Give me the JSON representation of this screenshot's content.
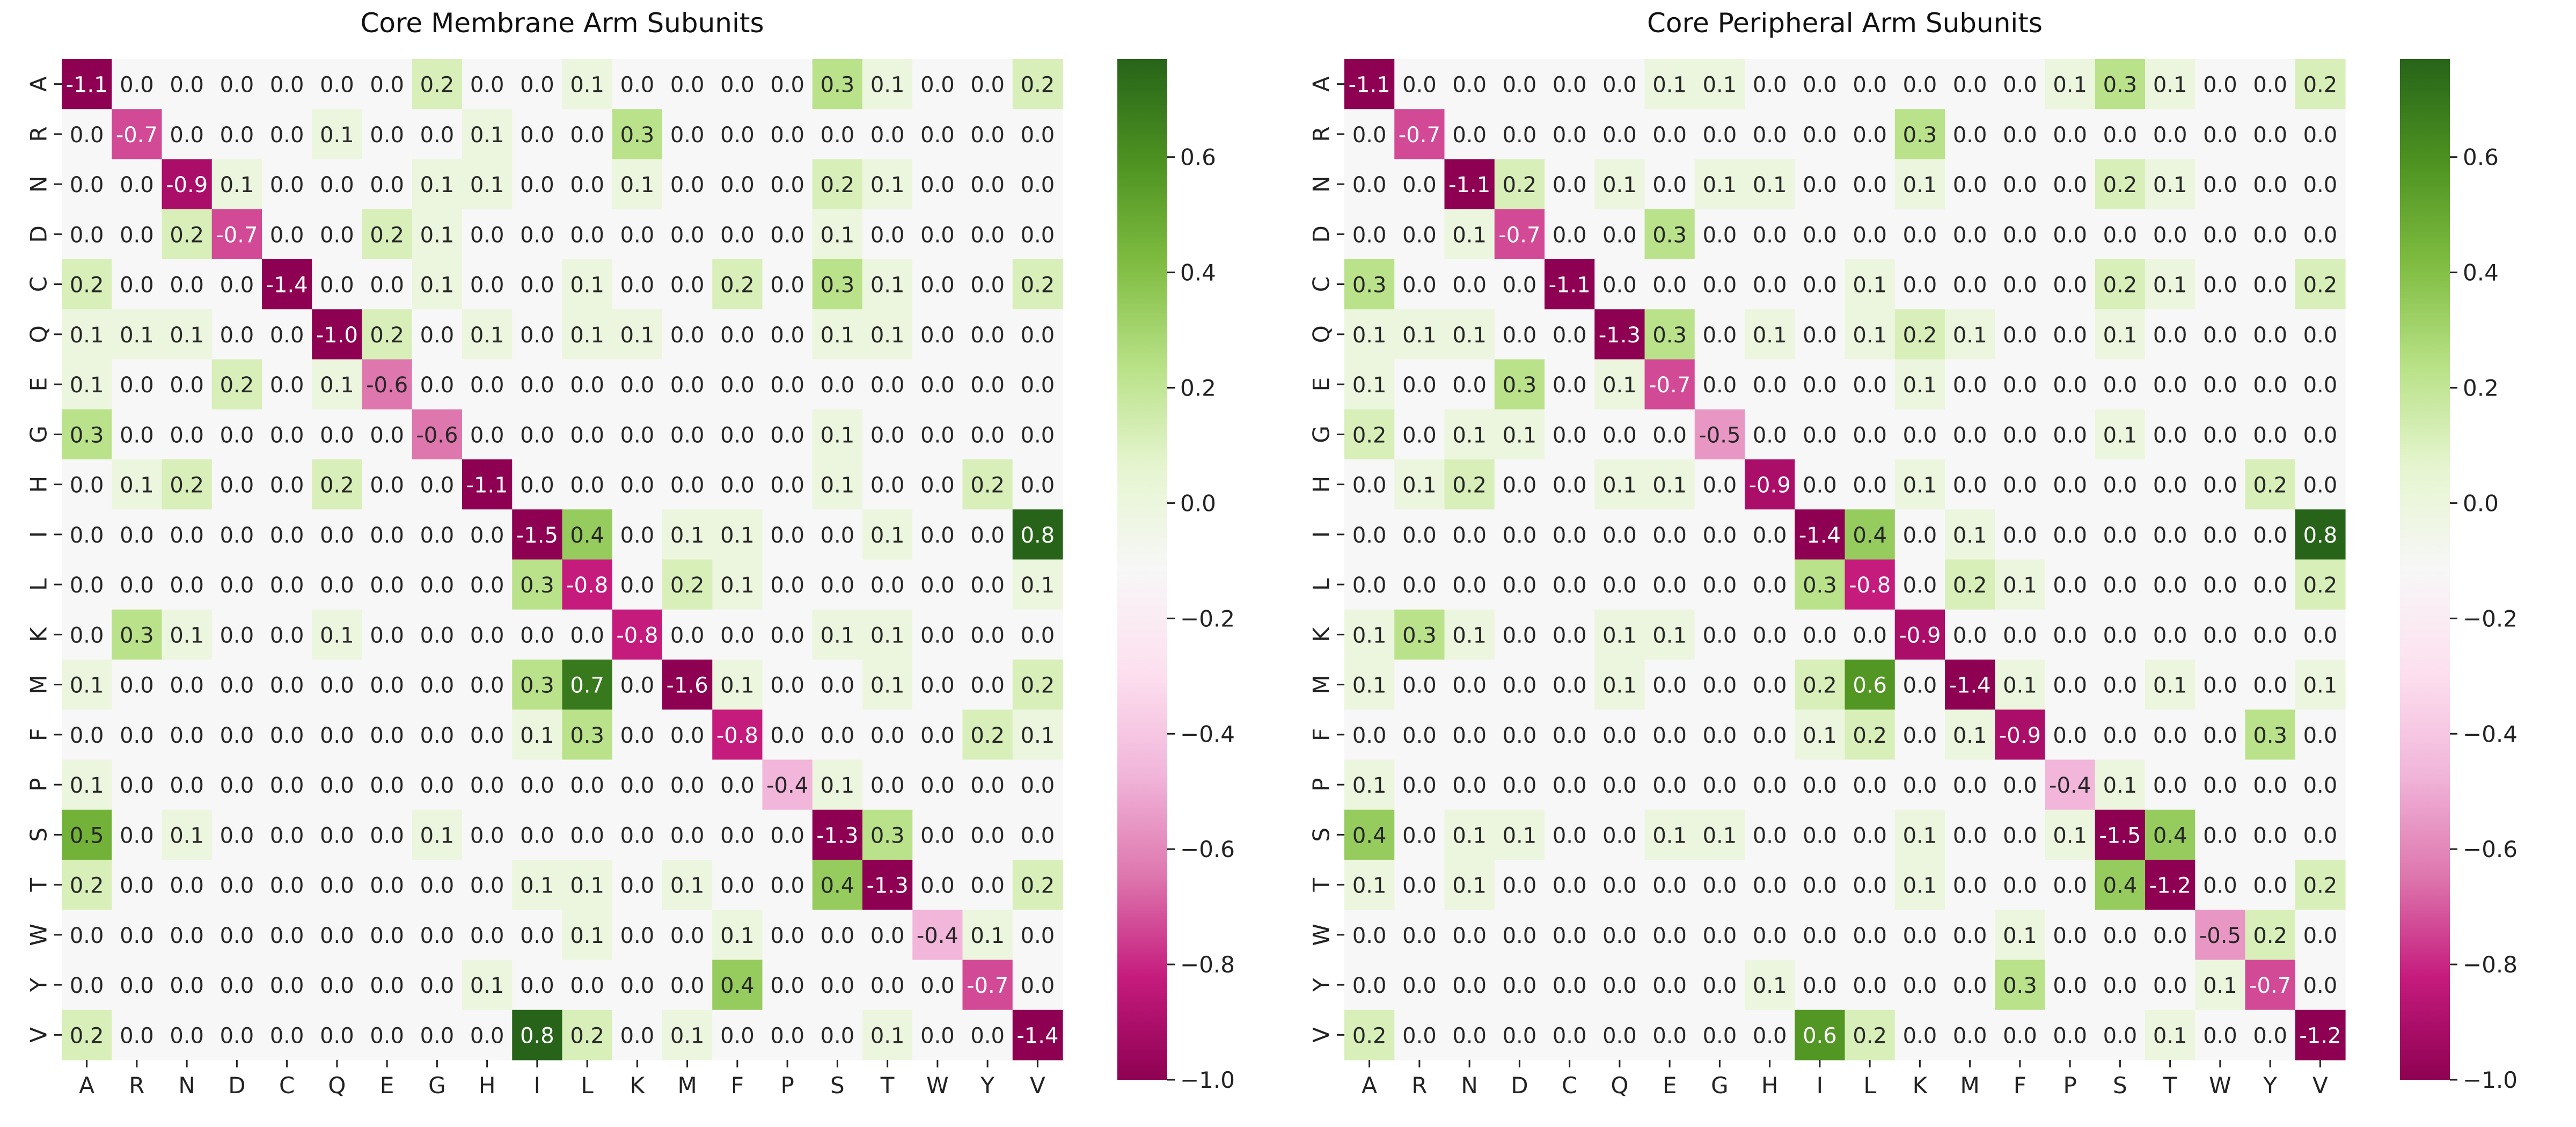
{
  "chart_data": [
    {
      "type": "heatmap",
      "title": "Core Membrane Arm Subunits",
      "x_categories": [
        "A",
        "R",
        "N",
        "D",
        "C",
        "Q",
        "E",
        "G",
        "H",
        "I",
        "L",
        "K",
        "M",
        "F",
        "P",
        "S",
        "T",
        "W",
        "Y",
        "V"
      ],
      "y_categories": [
        "A",
        "R",
        "N",
        "D",
        "C",
        "Q",
        "E",
        "G",
        "H",
        "I",
        "L",
        "K",
        "M",
        "F",
        "P",
        "S",
        "T",
        "W",
        "Y",
        "V"
      ],
      "values": [
        [
          -1.1,
          0.0,
          0.0,
          0.0,
          0.0,
          0.0,
          0.0,
          0.2,
          0.0,
          0.0,
          0.1,
          0.0,
          0.0,
          0.0,
          0.0,
          0.3,
          0.1,
          0.0,
          0.0,
          0.2
        ],
        [
          0.0,
          -0.7,
          0.0,
          0.0,
          0.0,
          0.1,
          0.0,
          0.0,
          0.1,
          0.0,
          0.0,
          0.3,
          0.0,
          0.0,
          0.0,
          0.0,
          0.0,
          0.0,
          0.0,
          0.0
        ],
        [
          0.0,
          0.0,
          -0.9,
          0.1,
          0.0,
          0.0,
          0.0,
          0.1,
          0.1,
          0.0,
          0.0,
          0.1,
          0.0,
          0.0,
          0.0,
          0.2,
          0.1,
          0.0,
          0.0,
          0.0
        ],
        [
          0.0,
          0.0,
          0.2,
          -0.7,
          0.0,
          0.0,
          0.2,
          0.1,
          0.0,
          0.0,
          0.0,
          0.0,
          0.0,
          0.0,
          0.0,
          0.1,
          0.0,
          0.0,
          0.0,
          0.0
        ],
        [
          0.2,
          0.0,
          0.0,
          0.0,
          -1.4,
          0.0,
          0.0,
          0.1,
          0.0,
          0.0,
          0.1,
          0.0,
          0.0,
          0.2,
          0.0,
          0.3,
          0.1,
          0.0,
          0.0,
          0.2
        ],
        [
          0.1,
          0.1,
          0.1,
          0.0,
          0.0,
          -1.0,
          0.2,
          0.0,
          0.1,
          0.0,
          0.1,
          0.1,
          0.0,
          0.0,
          0.0,
          0.1,
          0.1,
          0.0,
          0.0,
          0.0
        ],
        [
          0.1,
          0.0,
          0.0,
          0.2,
          0.0,
          0.1,
          -0.6,
          0.0,
          0.0,
          0.0,
          0.0,
          0.0,
          0.0,
          0.0,
          0.0,
          0.0,
          0.0,
          0.0,
          0.0,
          0.0
        ],
        [
          0.3,
          0.0,
          0.0,
          0.0,
          0.0,
          0.0,
          0.0,
          -0.6,
          0.0,
          0.0,
          0.0,
          0.0,
          0.0,
          0.0,
          0.0,
          0.1,
          0.0,
          0.0,
          0.0,
          0.0
        ],
        [
          0.0,
          0.1,
          0.2,
          0.0,
          0.0,
          0.2,
          0.0,
          0.0,
          -1.1,
          0.0,
          0.0,
          0.0,
          0.0,
          0.0,
          0.0,
          0.1,
          0.0,
          0.0,
          0.2,
          0.0
        ],
        [
          0.0,
          0.0,
          0.0,
          0.0,
          0.0,
          0.0,
          0.0,
          0.0,
          0.0,
          -1.5,
          0.4,
          0.0,
          0.1,
          0.1,
          0.0,
          0.0,
          0.1,
          0.0,
          0.0,
          0.8
        ],
        [
          0.0,
          0.0,
          0.0,
          0.0,
          0.0,
          0.0,
          0.0,
          0.0,
          0.0,
          0.3,
          -0.8,
          0.0,
          0.2,
          0.1,
          0.0,
          0.0,
          0.0,
          0.0,
          0.0,
          0.1
        ],
        [
          0.0,
          0.3,
          0.1,
          0.0,
          0.0,
          0.1,
          0.0,
          0.0,
          0.0,
          0.0,
          0.0,
          -0.8,
          0.0,
          0.0,
          0.0,
          0.1,
          0.1,
          0.0,
          0.0,
          0.0
        ],
        [
          0.1,
          0.0,
          0.0,
          0.0,
          0.0,
          0.0,
          0.0,
          0.0,
          0.0,
          0.3,
          0.7,
          0.0,
          -1.6,
          0.1,
          0.0,
          0.0,
          0.1,
          0.0,
          0.0,
          0.2
        ],
        [
          0.0,
          0.0,
          0.0,
          0.0,
          0.0,
          0.0,
          0.0,
          0.0,
          0.0,
          0.1,
          0.3,
          0.0,
          0.0,
          -0.8,
          0.0,
          0.0,
          0.0,
          0.0,
          0.2,
          0.1
        ],
        [
          0.1,
          0.0,
          0.0,
          0.0,
          0.0,
          0.0,
          0.0,
          0.0,
          0.0,
          0.0,
          0.0,
          0.0,
          0.0,
          0.0,
          -0.4,
          0.1,
          0.0,
          0.0,
          0.0,
          0.0
        ],
        [
          0.5,
          0.0,
          0.1,
          0.0,
          0.0,
          0.0,
          0.0,
          0.1,
          0.0,
          0.0,
          0.0,
          0.0,
          0.0,
          0.0,
          0.0,
          -1.3,
          0.3,
          0.0,
          0.0,
          0.0
        ],
        [
          0.2,
          0.0,
          0.0,
          0.0,
          0.0,
          0.0,
          0.0,
          0.0,
          0.0,
          0.1,
          0.1,
          0.0,
          0.1,
          0.0,
          0.0,
          0.4,
          -1.3,
          0.0,
          0.0,
          0.2
        ],
        [
          0.0,
          0.0,
          0.0,
          0.0,
          0.0,
          0.0,
          0.0,
          0.0,
          0.0,
          0.0,
          0.1,
          0.0,
          0.0,
          0.1,
          0.0,
          0.0,
          0.0,
          -0.4,
          0.1,
          0.0
        ],
        [
          0.0,
          0.0,
          0.0,
          0.0,
          0.0,
          0.0,
          0.0,
          0.0,
          0.1,
          0.0,
          0.0,
          0.0,
          0.0,
          0.4,
          0.0,
          0.0,
          0.0,
          0.0,
          -0.7,
          0.0
        ],
        [
          0.2,
          0.0,
          0.0,
          0.0,
          0.0,
          0.0,
          0.0,
          0.0,
          0.0,
          0.8,
          0.2,
          0.0,
          0.1,
          0.0,
          0.0,
          0.0,
          0.1,
          0.0,
          0.0,
          -1.4
        ]
      ],
      "colorbar": {
        "colormap": "PiYG",
        "vmin": -1.0,
        "vmax": 0.77,
        "ticks": [
          -1.0,
          -0.8,
          -0.6,
          -0.4,
          -0.2,
          0.0,
          0.2,
          0.4,
          0.6
        ],
        "tick_labels": [
          "−1.0",
          "−0.8",
          "−0.6",
          "−0.4",
          "−0.2",
          "0.0",
          "0.2",
          "0.4",
          "0.6"
        ]
      }
    },
    {
      "type": "heatmap",
      "title": "Core Peripheral Arm Subunits",
      "x_categories": [
        "A",
        "R",
        "N",
        "D",
        "C",
        "Q",
        "E",
        "G",
        "H",
        "I",
        "L",
        "K",
        "M",
        "F",
        "P",
        "S",
        "T",
        "W",
        "Y",
        "V"
      ],
      "y_categories": [
        "A",
        "R",
        "N",
        "D",
        "C",
        "Q",
        "E",
        "G",
        "H",
        "I",
        "L",
        "K",
        "M",
        "F",
        "P",
        "S",
        "T",
        "W",
        "Y",
        "V"
      ],
      "values": [
        [
          -1.1,
          0.0,
          0.0,
          0.0,
          0.0,
          0.0,
          0.1,
          0.1,
          0.0,
          0.0,
          0.0,
          0.0,
          0.0,
          0.0,
          0.1,
          0.3,
          0.1,
          0.0,
          0.0,
          0.2
        ],
        [
          0.0,
          -0.7,
          0.0,
          0.0,
          0.0,
          0.0,
          0.0,
          0.0,
          0.0,
          0.0,
          0.0,
          0.3,
          0.0,
          0.0,
          0.0,
          0.0,
          0.0,
          0.0,
          0.0,
          0.0
        ],
        [
          0.0,
          0.0,
          -1.1,
          0.2,
          0.0,
          0.1,
          0.0,
          0.1,
          0.1,
          0.0,
          0.0,
          0.1,
          0.0,
          0.0,
          0.0,
          0.2,
          0.1,
          0.0,
          0.0,
          0.0
        ],
        [
          0.0,
          0.0,
          0.1,
          -0.7,
          0.0,
          0.0,
          0.3,
          0.0,
          0.0,
          0.0,
          0.0,
          0.0,
          0.0,
          0.0,
          0.0,
          0.0,
          0.0,
          0.0,
          0.0,
          0.0
        ],
        [
          0.3,
          0.0,
          0.0,
          0.0,
          -1.1,
          0.0,
          0.0,
          0.0,
          0.0,
          0.0,
          0.1,
          0.0,
          0.0,
          0.0,
          0.0,
          0.2,
          0.1,
          0.0,
          0.0,
          0.2
        ],
        [
          0.1,
          0.1,
          0.1,
          0.0,
          0.0,
          -1.3,
          0.3,
          0.0,
          0.1,
          0.0,
          0.1,
          0.2,
          0.1,
          0.0,
          0.0,
          0.1,
          0.0,
          0.0,
          0.0,
          0.0
        ],
        [
          0.1,
          0.0,
          0.0,
          0.3,
          0.0,
          0.1,
          -0.7,
          0.0,
          0.0,
          0.0,
          0.0,
          0.1,
          0.0,
          0.0,
          0.0,
          0.0,
          0.0,
          0.0,
          0.0,
          0.0
        ],
        [
          0.2,
          0.0,
          0.1,
          0.1,
          0.0,
          0.0,
          0.0,
          -0.5,
          0.0,
          0.0,
          0.0,
          0.0,
          0.0,
          0.0,
          0.0,
          0.1,
          0.0,
          0.0,
          0.0,
          0.0
        ],
        [
          0.0,
          0.1,
          0.2,
          0.0,
          0.0,
          0.1,
          0.1,
          0.0,
          -0.9,
          0.0,
          0.0,
          0.1,
          0.0,
          0.0,
          0.0,
          0.0,
          0.0,
          0.0,
          0.2,
          0.0
        ],
        [
          0.0,
          0.0,
          0.0,
          0.0,
          0.0,
          0.0,
          0.0,
          0.0,
          0.0,
          -1.4,
          0.4,
          0.0,
          0.1,
          0.0,
          0.0,
          0.0,
          0.0,
          0.0,
          0.0,
          0.8
        ],
        [
          0.0,
          0.0,
          0.0,
          0.0,
          0.0,
          0.0,
          0.0,
          0.0,
          0.0,
          0.3,
          -0.8,
          0.0,
          0.2,
          0.1,
          0.0,
          0.0,
          0.0,
          0.0,
          0.0,
          0.2
        ],
        [
          0.1,
          0.3,
          0.1,
          0.0,
          0.0,
          0.1,
          0.1,
          0.0,
          0.0,
          0.0,
          0.0,
          -0.9,
          0.0,
          0.0,
          0.0,
          0.0,
          0.0,
          0.0,
          0.0,
          0.0
        ],
        [
          0.1,
          0.0,
          0.0,
          0.0,
          0.0,
          0.1,
          0.0,
          0.0,
          0.0,
          0.2,
          0.6,
          0.0,
          -1.4,
          0.1,
          0.0,
          0.0,
          0.1,
          0.0,
          0.0,
          0.1
        ],
        [
          0.0,
          0.0,
          0.0,
          0.0,
          0.0,
          0.0,
          0.0,
          0.0,
          0.0,
          0.1,
          0.2,
          0.0,
          0.1,
          -0.9,
          0.0,
          0.0,
          0.0,
          0.0,
          0.3,
          0.0
        ],
        [
          0.1,
          0.0,
          0.0,
          0.0,
          0.0,
          0.0,
          0.0,
          0.0,
          0.0,
          0.0,
          0.0,
          0.0,
          0.0,
          0.0,
          -0.4,
          0.1,
          0.0,
          0.0,
          0.0,
          0.0
        ],
        [
          0.4,
          0.0,
          0.1,
          0.1,
          0.0,
          0.0,
          0.1,
          0.1,
          0.0,
          0.0,
          0.0,
          0.1,
          0.0,
          0.0,
          0.1,
          -1.5,
          0.4,
          0.0,
          0.0,
          0.0
        ],
        [
          0.1,
          0.0,
          0.1,
          0.0,
          0.0,
          0.0,
          0.0,
          0.0,
          0.0,
          0.0,
          0.0,
          0.1,
          0.0,
          0.0,
          0.0,
          0.4,
          -1.2,
          0.0,
          0.0,
          0.2
        ],
        [
          0.0,
          0.0,
          0.0,
          0.0,
          0.0,
          0.0,
          0.0,
          0.0,
          0.0,
          0.0,
          0.0,
          0.0,
          0.0,
          0.1,
          0.0,
          0.0,
          0.0,
          -0.5,
          0.2,
          0.0
        ],
        [
          0.0,
          0.0,
          0.0,
          0.0,
          0.0,
          0.0,
          0.0,
          0.0,
          0.1,
          0.0,
          0.0,
          0.0,
          0.0,
          0.3,
          0.0,
          0.0,
          0.0,
          0.1,
          -0.7,
          0.0
        ],
        [
          0.2,
          0.0,
          0.0,
          0.0,
          0.0,
          0.0,
          0.0,
          0.0,
          0.0,
          0.6,
          0.2,
          0.0,
          0.0,
          0.0,
          0.0,
          0.0,
          0.1,
          0.0,
          0.0,
          -1.2
        ]
      ],
      "colorbar": {
        "colormap": "PiYG",
        "vmin": -1.0,
        "vmax": 0.77,
        "ticks": [
          -1.0,
          -0.8,
          -0.6,
          -0.4,
          -0.2,
          0.0,
          0.2,
          0.4,
          0.6
        ],
        "tick_labels": [
          "−1.0",
          "−0.8",
          "−0.6",
          "−0.4",
          "−0.2",
          "0.0",
          "0.2",
          "0.4",
          "0.6"
        ]
      }
    }
  ]
}
